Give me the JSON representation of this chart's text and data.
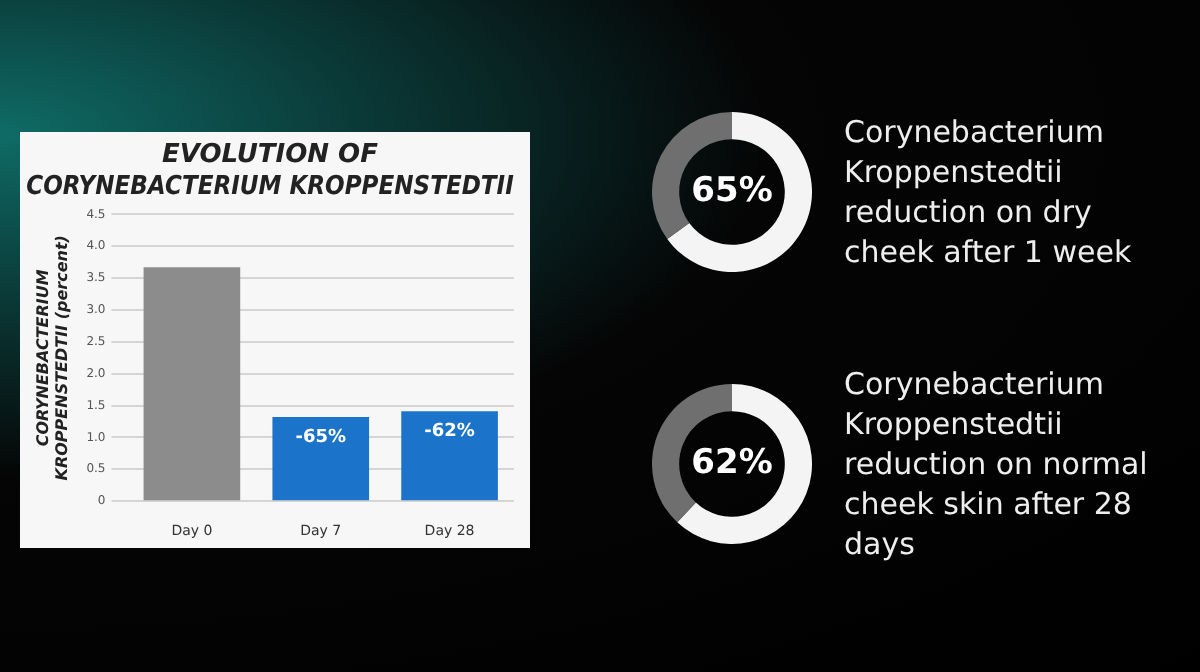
{
  "chart_data": [
    {
      "type": "bar",
      "title": [
        "EVOLUTION OF",
        "CORYNEBACTERIUM KROPPENSTEDTII"
      ],
      "ylabel": [
        "CORYNEBACTERIUM",
        "KROPPENSTEDTII (percent)"
      ],
      "categories": [
        "Day 0",
        "Day 7",
        "Day 28"
      ],
      "values": [
        3.67,
        1.32,
        1.41
      ],
      "colors": [
        "#8c8c8c",
        "#1b74c9",
        "#1b74c9"
      ],
      "annotations": [
        {
          "text": "-65%",
          "x": "Day 7",
          "y": 1.32
        },
        {
          "text": "-62%",
          "x": "Day 28",
          "y": 1.41
        }
      ],
      "ylim": [
        0,
        4.5
      ],
      "yticks": [
        {
          "value": 0,
          "label": "0"
        },
        0.5,
        {
          "value": 1,
          "label": "1.0"
        },
        1.5,
        {
          "value": 2,
          "label": "2.0"
        },
        2.5,
        {
          "value": 3,
          "label": "3.0"
        },
        3.5,
        {
          "value": 4,
          "label": "4.0"
        },
        4.5
      ],
      "grid": "y",
      "legend": false
    },
    {
      "type": "donut",
      "categories": [
        null,
        null
      ],
      "values": [
        65,
        35
      ],
      "colors": [
        "#f4f4f4",
        "#6f6f6f"
      ],
      "value_labels": [
        "65%",
        null
      ],
      "annotations": [
        "Corynebacterium Kroppenstedtii reduction on dry cheek after 1 week"
      ],
      "legend": false
    },
    {
      "type": "donut",
      "categories": [
        null,
        null
      ],
      "values": [
        62,
        38
      ],
      "colors": [
        "#f4f4f4",
        "#6f6f6f"
      ],
      "value_labels": [
        "62%",
        null
      ],
      "annotations": [
        "Corynebacterium Kroppenstedtii reduction on normal cheek skin after 28 days"
      ],
      "legend": false
    }
  ]
}
